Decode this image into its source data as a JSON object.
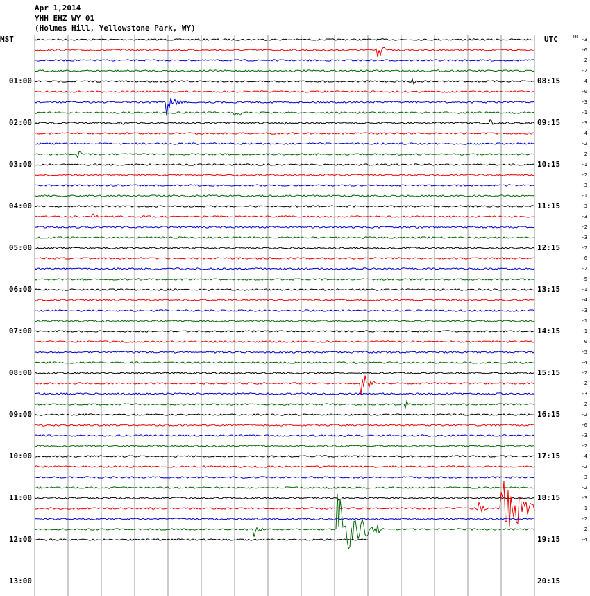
{
  "header": {
    "date": "Apr 1,2014",
    "station": "YHH EHZ WY 01",
    "location": "(Holmes Hill, Yellowstone Park, WY)"
  },
  "left_axis": {
    "label": "MST",
    "times": [
      "01:00",
      "02:00",
      "03:00",
      "04:00",
      "05:00",
      "06:00",
      "07:00",
      "08:00",
      "09:00",
      "10:00",
      "11:00",
      "12:00",
      "13:00"
    ]
  },
  "right_axis": {
    "label": "UTC",
    "times": [
      "08:15",
      "09:15",
      "10:15",
      "11:15",
      "12:15",
      "13:15",
      "14:15",
      "15:15",
      "16:15",
      "17:15",
      "18:15",
      "19:15",
      "20:15"
    ]
  },
  "dc_column": {
    "label": "DC",
    "offsets": [
      "-3",
      "-6",
      "-2",
      "-2",
      "-4",
      "-0",
      "-3",
      "-1",
      "-3",
      "-4",
      "-2",
      "2",
      "-1",
      "-2",
      "-3",
      "-1",
      "-3",
      "-3",
      "-2",
      "-3",
      "-7",
      "-6",
      "-2",
      "-5",
      "-1",
      "-4",
      "-3",
      "-1",
      "-1",
      "0",
      "-5",
      "-4",
      "-2",
      "-2",
      "-3",
      "-2",
      "-2",
      "-6",
      "-3",
      "-2",
      "-4",
      "-2",
      "-3",
      "-2",
      "-3",
      "-1",
      "-2",
      "-2",
      "-4"
    ]
  }
}
